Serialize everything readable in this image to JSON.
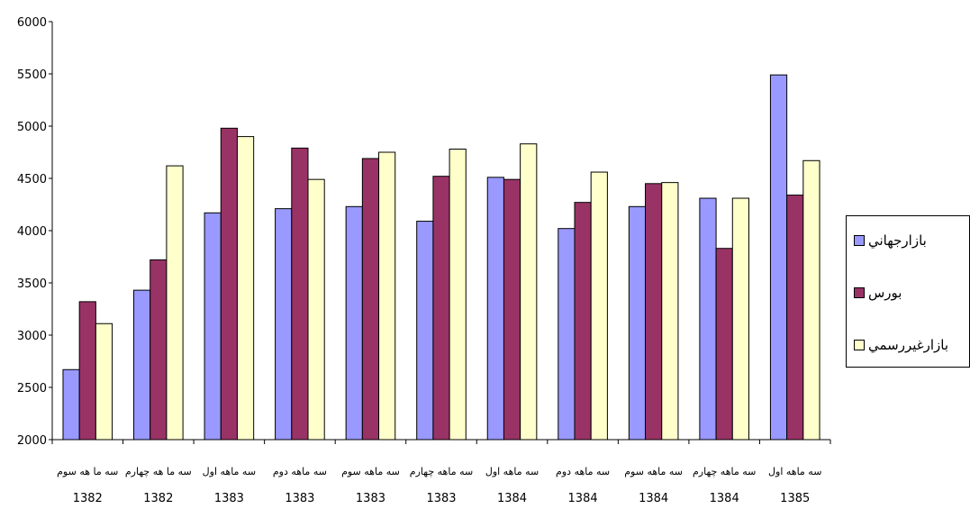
{
  "chart_data": {
    "type": "bar",
    "title": "",
    "ylim": [
      2000,
      6000
    ],
    "yticks": [
      2000,
      2500,
      3000,
      3500,
      4000,
      4500,
      5000,
      5500,
      6000
    ],
    "categories": [
      {
        "quarter": "سه ما هه سوم",
        "year": "1382"
      },
      {
        "quarter": "سه ما هه چهارم",
        "year": "1382"
      },
      {
        "quarter": "سه ماهه اول",
        "year": "1383"
      },
      {
        "quarter": "سه ماهه دوم",
        "year": "1383"
      },
      {
        "quarter": "سه ماهه سوم",
        "year": "1383"
      },
      {
        "quarter": "سه ماهه چهارم",
        "year": "1383"
      },
      {
        "quarter": "سه ماهه اول",
        "year": "1384"
      },
      {
        "quarter": "سه ماهه دوم",
        "year": "1384"
      },
      {
        "quarter": "سه ماهه سوم",
        "year": "1384"
      },
      {
        "quarter": "سه ماهه چهارم",
        "year": "1384"
      },
      {
        "quarter": "سه ماهه اول",
        "year": "1385"
      }
    ],
    "series": [
      {
        "name": "بازارجهاني",
        "color": "#9999ff",
        "values": [
          2670,
          3430,
          4170,
          4210,
          4230,
          4090,
          4510,
          4020,
          4230,
          4310,
          5490
        ]
      },
      {
        "name": "بورس",
        "color": "#993366",
        "values": [
          3320,
          3720,
          4980,
          4790,
          4690,
          4520,
          4490,
          4270,
          4450,
          3830,
          4340
        ]
      },
      {
        "name": "بازارغيررسمي",
        "color": "#ffffcc",
        "values": [
          3110,
          4620,
          4900,
          4490,
          4750,
          4780,
          4830,
          4560,
          4460,
          4310,
          4670
        ]
      }
    ],
    "grid": false,
    "legend_position": "right"
  }
}
